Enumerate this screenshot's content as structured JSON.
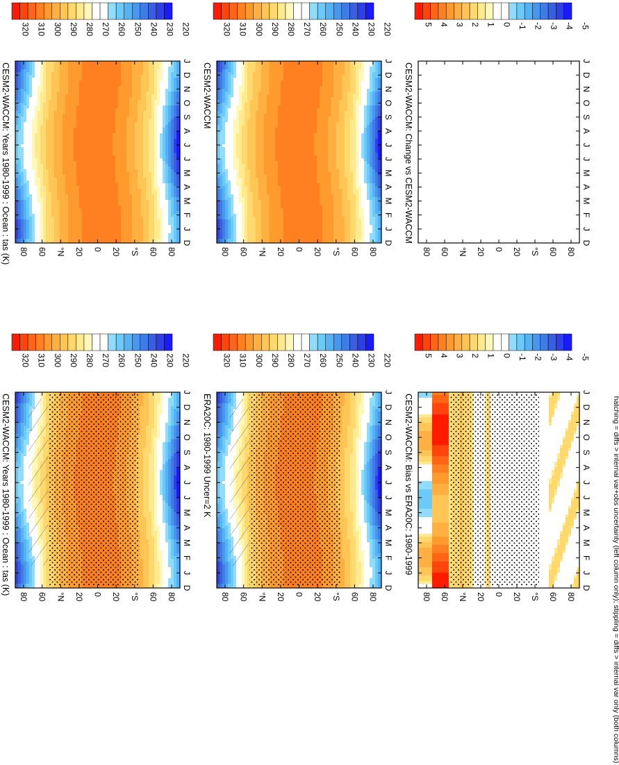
{
  "footer": "hatching = diffs > internal var+obs uncertainty (left column only); stippling = diffs > internal var only (both columns)",
  "colors": {
    "abs_scale": [
      "#1a1aff",
      "#2f3fe6",
      "#3a5ee0",
      "#3f7ce6",
      "#4797ef",
      "#55b2f5",
      "#6ccaf9",
      "#8fdcfb",
      "#ffffff",
      "#ffffff",
      "#fff8b8",
      "#ffea8f",
      "#ffd86e",
      "#ffc555",
      "#ffb040",
      "#ff9a2e",
      "#ff8020",
      "#ff6515",
      "#ff450c",
      "#ff1a00"
    ],
    "diff_scale": [
      "#1a1aff",
      "#2f3fe6",
      "#3a5ee0",
      "#3f7ce6",
      "#4797ef",
      "#55b2f5",
      "#6ccaf9",
      "#8fdcfb",
      "#ffffff",
      "#ffffff",
      "#fff8b8",
      "#ffea8f",
      "#ffd86e",
      "#ffc555",
      "#ffb040",
      "#ff9a2e",
      "#ff8020",
      "#ff6515",
      "#ff450c",
      "#ff1a00"
    ]
  },
  "chart_data": [
    {
      "type": "heatmap",
      "panel": "top-left",
      "title": "CESM2-WACCM: Years 1980-1999 : Ocean : tas (K)",
      "months": [
        "D",
        "J",
        "F",
        "M",
        "A",
        "M",
        "J",
        "J",
        "A",
        "S",
        "O",
        "N",
        "D",
        "J"
      ],
      "lat_ticks": [
        "80",
        "60",
        "°N",
        "20",
        "0",
        "20",
        "°S",
        "60",
        "80"
      ],
      "colorbar_labels": [
        "320",
        "310",
        "300",
        "290",
        "280",
        "270",
        "260",
        "250",
        "240",
        "230",
        "220"
      ],
      "stippling": true,
      "hatching": true
    },
    {
      "type": "heatmap",
      "panel": "top-right",
      "title": "CESM2-WACCM: Years 1980-1999 : Ocean : tas (K)",
      "months": [
        "D",
        "J",
        "F",
        "M",
        "A",
        "M",
        "J",
        "J",
        "A",
        "S",
        "O",
        "N",
        "D",
        "J"
      ],
      "lat_ticks": [
        "80",
        "60",
        "°N",
        "20",
        "0",
        "20",
        "°S",
        "60",
        "80"
      ],
      "colorbar_labels": [
        "320",
        "310",
        "300",
        "290",
        "280",
        "270",
        "260",
        "250",
        "240",
        "230",
        "220"
      ],
      "stippling": false,
      "hatching": false
    },
    {
      "type": "heatmap",
      "panel": "middle-left",
      "title": "ERA20C: 1980-1999 Uncer=2 K",
      "months": [
        "D",
        "J",
        "F",
        "M",
        "A",
        "M",
        "J",
        "J",
        "A",
        "S",
        "O",
        "N",
        "D",
        "J"
      ],
      "lat_ticks": [
        "80",
        "60",
        "°N",
        "20",
        "0",
        "20",
        "°S",
        "60",
        "80"
      ],
      "colorbar_labels": [
        "320",
        "310",
        "300",
        "290",
        "280",
        "270",
        "260",
        "250",
        "240",
        "230",
        "220"
      ],
      "stippling": true,
      "hatching": true
    },
    {
      "type": "heatmap",
      "panel": "middle-right",
      "title": "CESM2-WACCM",
      "months": [
        "D",
        "J",
        "F",
        "M",
        "A",
        "M",
        "J",
        "J",
        "A",
        "S",
        "O",
        "N",
        "D",
        "J"
      ],
      "lat_ticks": [
        "80",
        "60",
        "°N",
        "20",
        "0",
        "20",
        "°S",
        "60",
        "80"
      ],
      "colorbar_labels": [
        "320",
        "310",
        "300",
        "290",
        "280",
        "270",
        "260",
        "250",
        "240",
        "230",
        "220"
      ],
      "stippling": false,
      "hatching": false
    },
    {
      "type": "heatmap",
      "panel": "bottom-left",
      "title": "CESM2-WACCM: Bias vs ERA20C: 1980-1999",
      "months": [
        "D",
        "J",
        "F",
        "M",
        "A",
        "M",
        "J",
        "J",
        "A",
        "S",
        "O",
        "N",
        "D",
        "J"
      ],
      "lat_ticks": [
        "80",
        "60",
        "°N",
        "20",
        "0",
        "20",
        "°S",
        "60",
        "80"
      ],
      "colorbar_labels": [
        "5",
        "4",
        "3",
        "2",
        "1",
        "0",
        "-1",
        "-2",
        "-3",
        "-4",
        "-5"
      ],
      "stippling": true,
      "hatching": false
    },
    {
      "type": "heatmap",
      "panel": "bottom-right",
      "title": "CESM2-WACCM: Change vs CESM2-WACCM",
      "months": [
        "D",
        "J",
        "F",
        "M",
        "A",
        "M",
        "J",
        "J",
        "A",
        "S",
        "O",
        "N",
        "D",
        "J"
      ],
      "lat_ticks": [
        "80",
        "60",
        "°N",
        "20",
        "0",
        "20",
        "°S",
        "60",
        "80"
      ],
      "colorbar_labels": [
        "5",
        "4",
        "3",
        "2",
        "1",
        "0",
        "-1",
        "-2",
        "-3",
        "-4",
        "-5"
      ],
      "stippling": false,
      "hatching": false,
      "values": "blank (all zero)"
    }
  ]
}
